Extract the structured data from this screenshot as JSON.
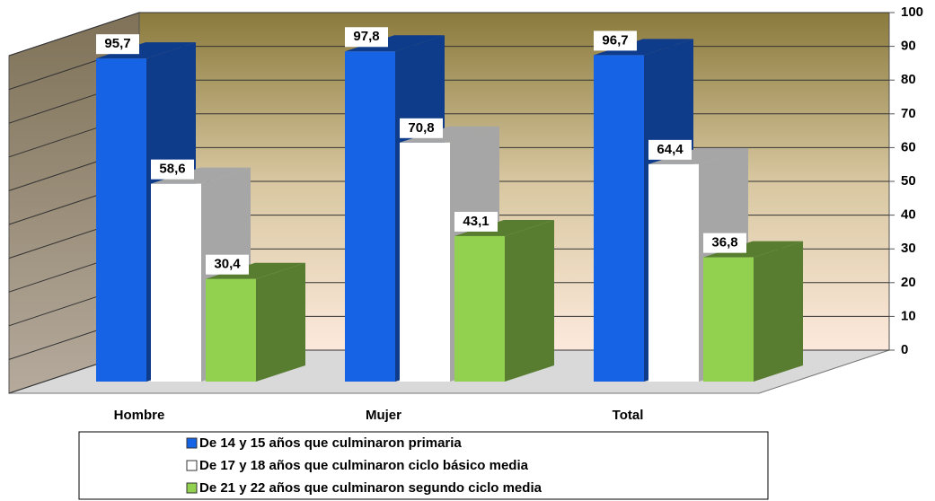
{
  "chart_data": {
    "type": "bar3d",
    "categories": [
      "Hombre",
      "Mujer",
      "Total"
    ],
    "series": [
      {
        "name": "De 14 y 15 años que culminaron primaria",
        "color": "#1763e6",
        "values": [
          95.7,
          97.8,
          96.7
        ],
        "value_labels": [
          "95,7",
          "97,8",
          "96,7"
        ]
      },
      {
        "name": "De 17 y 18 años que culminaron ciclo básico media",
        "color": "#ffffff",
        "values": [
          58.6,
          70.8,
          64.4
        ],
        "value_labels": [
          "58,6",
          "70,8",
          "64,4"
        ]
      },
      {
        "name": "De 21 y 22 años que culminaron segundo ciclo media",
        "color": "#92d050",
        "values": [
          30.4,
          43.1,
          36.8
        ],
        "value_labels": [
          "30,4",
          "43,1",
          "36,8"
        ]
      }
    ],
    "ylim": [
      0,
      100
    ],
    "yticks": [
      0,
      10,
      20,
      30,
      40,
      50,
      60,
      70,
      80,
      90,
      100
    ],
    "grid": true
  }
}
